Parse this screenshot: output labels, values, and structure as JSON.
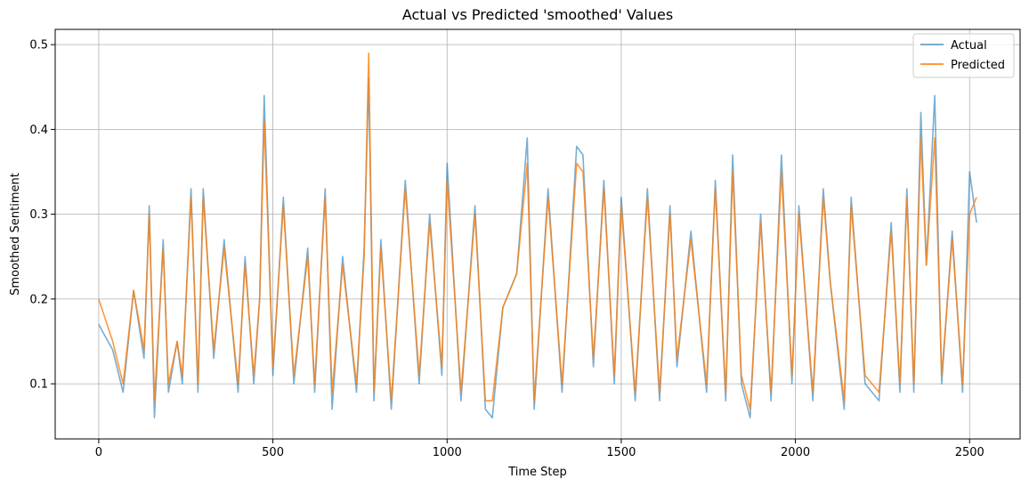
{
  "chart_data": {
    "type": "line",
    "title": "Actual vs Predicted 'smoothed' Values",
    "xlabel": "Time Step",
    "ylabel": "Smoothed Sentiment",
    "xlim": [
      -125,
      2645
    ],
    "ylim": [
      0.035,
      0.518
    ],
    "x_ticks": [
      0,
      500,
      1000,
      1500,
      2000,
      2500
    ],
    "x_tick_labels": [
      "0",
      "500",
      "1000",
      "1500",
      "2000",
      "2500"
    ],
    "y_ticks": [
      0.1,
      0.2,
      0.3,
      0.4,
      0.5
    ],
    "y_tick_labels": [
      "0.1",
      "0.2",
      "0.3",
      "0.4",
      "0.5"
    ],
    "grid": true,
    "legend_position": "top-right",
    "series": [
      {
        "name": "Actual",
        "color": "#1f77b4",
        "opacity": 0.6,
        "x": [
          0,
          40,
          70,
          100,
          130,
          145,
          160,
          185,
          200,
          225,
          240,
          265,
          285,
          300,
          330,
          360,
          400,
          420,
          445,
          462,
          475,
          500,
          530,
          560,
          600,
          620,
          650,
          670,
          700,
          740,
          762,
          775,
          790,
          810,
          840,
          880,
          920,
          950,
          985,
          1000,
          1040,
          1080,
          1110,
          1130,
          1160,
          1200,
          1230,
          1250,
          1290,
          1330,
          1372,
          1390,
          1420,
          1450,
          1480,
          1500,
          1540,
          1575,
          1610,
          1640,
          1660,
          1700,
          1745,
          1770,
          1800,
          1820,
          1845,
          1870,
          1900,
          1930,
          1960,
          1990,
          2010,
          2050,
          2080,
          2100,
          2140,
          2160,
          2200,
          2240,
          2275,
          2300,
          2320,
          2340,
          2360,
          2376,
          2400,
          2420,
          2450,
          2480,
          2500,
          2520
        ],
        "y": [
          0.17,
          0.14,
          0.09,
          0.21,
          0.13,
          0.31,
          0.06,
          0.27,
          0.09,
          0.15,
          0.1,
          0.33,
          0.09,
          0.33,
          0.13,
          0.27,
          0.09,
          0.25,
          0.1,
          0.2,
          0.44,
          0.11,
          0.32,
          0.1,
          0.26,
          0.09,
          0.33,
          0.07,
          0.25,
          0.09,
          0.26,
          0.46,
          0.08,
          0.27,
          0.07,
          0.34,
          0.1,
          0.3,
          0.11,
          0.36,
          0.08,
          0.31,
          0.07,
          0.06,
          0.19,
          0.23,
          0.39,
          0.07,
          0.33,
          0.09,
          0.38,
          0.37,
          0.12,
          0.34,
          0.1,
          0.32,
          0.08,
          0.33,
          0.08,
          0.31,
          0.12,
          0.28,
          0.09,
          0.34,
          0.08,
          0.37,
          0.1,
          0.06,
          0.3,
          0.08,
          0.37,
          0.1,
          0.31,
          0.08,
          0.33,
          0.22,
          0.07,
          0.32,
          0.1,
          0.08,
          0.29,
          0.09,
          0.33,
          0.09,
          0.42,
          0.24,
          0.44,
          0.1,
          0.28,
          0.09,
          0.35,
          0.29
        ]
      },
      {
        "name": "Predicted",
        "color": "#ff7f0e",
        "opacity": 0.8,
        "x": [
          0,
          40,
          70,
          100,
          130,
          145,
          160,
          185,
          200,
          225,
          240,
          265,
          285,
          300,
          330,
          360,
          400,
          420,
          445,
          462,
          475,
          500,
          530,
          560,
          600,
          620,
          650,
          670,
          700,
          740,
          762,
          775,
          790,
          810,
          840,
          880,
          920,
          950,
          985,
          1000,
          1040,
          1080,
          1110,
          1130,
          1160,
          1200,
          1230,
          1250,
          1290,
          1330,
          1372,
          1390,
          1420,
          1450,
          1480,
          1500,
          1540,
          1575,
          1610,
          1640,
          1660,
          1700,
          1745,
          1770,
          1800,
          1820,
          1845,
          1870,
          1900,
          1930,
          1960,
          1990,
          2010,
          2050,
          2080,
          2100,
          2140,
          2160,
          2200,
          2240,
          2275,
          2300,
          2320,
          2340,
          2360,
          2376,
          2400,
          2420,
          2450,
          2480,
          2500,
          2520
        ],
        "y": [
          0.2,
          0.15,
          0.1,
          0.21,
          0.14,
          0.3,
          0.08,
          0.26,
          0.1,
          0.15,
          0.11,
          0.32,
          0.1,
          0.32,
          0.14,
          0.26,
          0.1,
          0.24,
          0.11,
          0.2,
          0.41,
          0.12,
          0.31,
          0.11,
          0.25,
          0.1,
          0.32,
          0.09,
          0.24,
          0.1,
          0.25,
          0.49,
          0.09,
          0.26,
          0.08,
          0.33,
          0.11,
          0.29,
          0.12,
          0.34,
          0.09,
          0.3,
          0.08,
          0.08,
          0.19,
          0.23,
          0.36,
          0.08,
          0.32,
          0.1,
          0.36,
          0.35,
          0.13,
          0.33,
          0.11,
          0.31,
          0.09,
          0.32,
          0.09,
          0.3,
          0.13,
          0.27,
          0.1,
          0.33,
          0.09,
          0.35,
          0.11,
          0.07,
          0.29,
          0.09,
          0.35,
          0.11,
          0.3,
          0.09,
          0.32,
          0.22,
          0.08,
          0.31,
          0.11,
          0.09,
          0.28,
          0.1,
          0.32,
          0.1,
          0.39,
          0.24,
          0.39,
          0.11,
          0.27,
          0.1,
          0.3,
          0.32
        ]
      }
    ]
  }
}
